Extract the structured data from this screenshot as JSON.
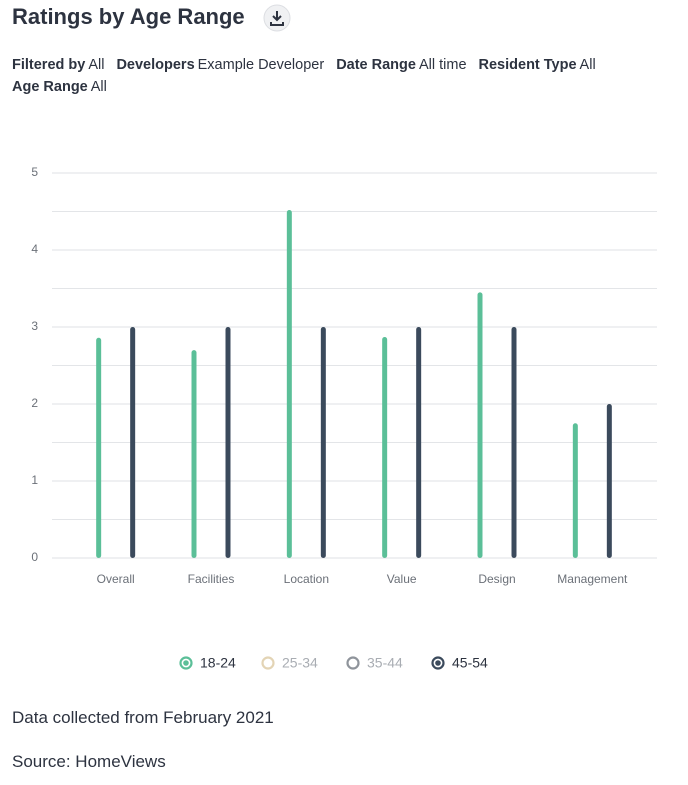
{
  "header": {
    "title": "Ratings by Age Range"
  },
  "filters": [
    {
      "label": "Filtered by",
      "value": "All"
    },
    {
      "label": "Developers",
      "value": "Example Developer"
    },
    {
      "label": "Date Range",
      "value": "All time"
    },
    {
      "label": "Resident Type",
      "value": "All"
    },
    {
      "label": "Age Range",
      "value": "All"
    }
  ],
  "chart_data": {
    "type": "bar",
    "categories": [
      "Overall",
      "Facilities",
      "Location",
      "Value",
      "Design",
      "Management"
    ],
    "series": [
      {
        "name": "18-24",
        "color": "#5bbf98",
        "visible": true,
        "values": [
          2.86,
          2.7,
          4.52,
          2.87,
          3.45,
          1.75
        ]
      },
      {
        "name": "25-34",
        "color": "#e3d4b5",
        "visible": false,
        "values": [
          null,
          null,
          null,
          null,
          null,
          null
        ]
      },
      {
        "name": "35-44",
        "color": "#8f949b",
        "visible": false,
        "values": [
          null,
          null,
          null,
          null,
          null,
          null
        ]
      },
      {
        "name": "45-54",
        "color": "#3b4a5c",
        "visible": true,
        "values": [
          3,
          3,
          3,
          3,
          3,
          2
        ]
      }
    ],
    "ylim": [
      0,
      5
    ],
    "yticks": [
      0,
      1,
      2,
      3,
      4,
      5
    ],
    "minor_yticks": [
      0.5,
      1.5,
      2.5,
      3.5,
      4.5
    ],
    "grid": true
  },
  "footer": {
    "note": "Data collected from February 2021",
    "source": "Source: HomeViews"
  }
}
